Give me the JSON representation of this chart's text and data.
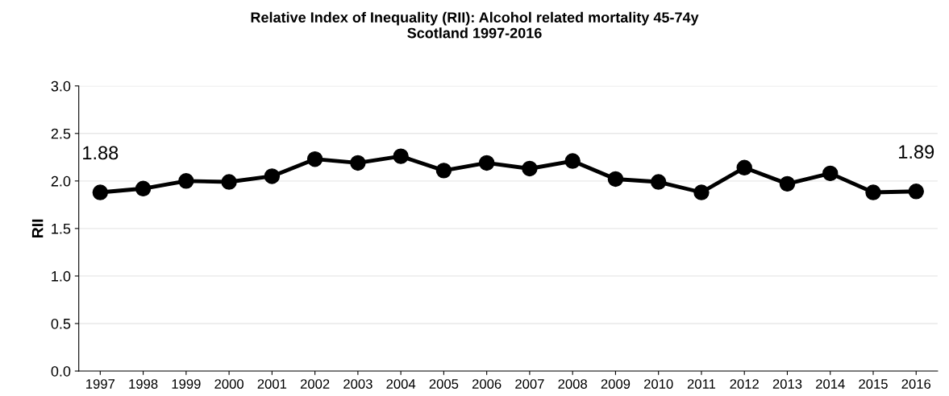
{
  "chart_data": {
    "type": "line",
    "title": "Relative Index of Inequality (RII): Alcohol related mortality 45-74y\nScotland 1997-2016",
    "ylabel": "RII",
    "categories": [
      "1997",
      "1998",
      "1999",
      "2000",
      "2001",
      "2002",
      "2003",
      "2004",
      "2005",
      "2006",
      "2007",
      "2008",
      "2009",
      "2010",
      "2011",
      "2012",
      "2013",
      "2014",
      "2015",
      "2016"
    ],
    "series": [
      {
        "color": "#000000",
        "values": [
          1.88,
          1.92,
          2.0,
          1.99,
          2.05,
          2.23,
          2.19,
          2.26,
          2.11,
          2.19,
          2.13,
          2.21,
          2.02,
          1.99,
          1.88,
          2.14,
          1.97,
          2.08,
          1.88,
          1.89
        ],
        "value_labels": [
          "1.88",
          null,
          null,
          null,
          null,
          null,
          null,
          null,
          null,
          null,
          null,
          null,
          null,
          null,
          null,
          null,
          null,
          null,
          null,
          "1.89"
        ]
      }
    ],
    "ylim": [
      0,
      3
    ],
    "yticks": [
      {
        "value": 0,
        "label": "0.0"
      },
      {
        "value": 0.5,
        "label": "0.5"
      },
      {
        "value": 1,
        "label": "1.0"
      },
      {
        "value": 1.5,
        "label": "1.5"
      },
      {
        "value": 2,
        "label": "2.0"
      },
      {
        "value": 2.5,
        "label": "2.5"
      },
      {
        "value": 3,
        "label": "3.0"
      }
    ],
    "grid": "y",
    "marker": "circle",
    "line_style": "solid"
  }
}
